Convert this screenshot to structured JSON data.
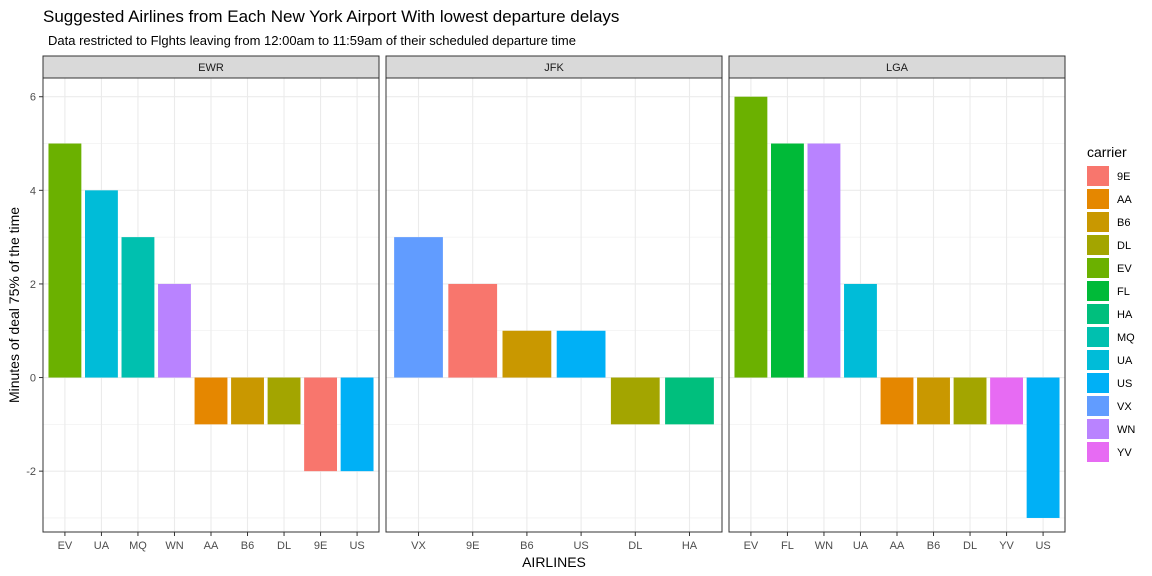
{
  "chart_data": {
    "type": "bar",
    "title": "Suggested Airlines from Each New York Airport With lowest departure delays",
    "subtitle": "Data restricted to Flghts leaving from 12:00am to 11:59am of their scheduled departure time",
    "xlabel": "AIRLINES",
    "ylabel": "Minutes of deal 75% of the time",
    "ylim": [
      -3.3,
      6.4
    ],
    "yticks": [
      -2,
      0,
      2,
      4,
      6
    ],
    "grid": true,
    "legend": {
      "title": "carrier",
      "position": "right",
      "entries": [
        {
          "label": "9E",
          "color": "#F8766D"
        },
        {
          "label": "AA",
          "color": "#E58700"
        },
        {
          "label": "B6",
          "color": "#C99800"
        },
        {
          "label": "DL",
          "color": "#A3A500"
        },
        {
          "label": "EV",
          "color": "#6BB100"
        },
        {
          "label": "FL",
          "color": "#00BA38"
        },
        {
          "label": "HA",
          "color": "#00BF7D"
        },
        {
          "label": "MQ",
          "color": "#00C0AF"
        },
        {
          "label": "UA",
          "color": "#00BCD8"
        },
        {
          "label": "US",
          "color": "#00B0F6"
        },
        {
          "label": "VX",
          "color": "#619CFF"
        },
        {
          "label": "WN",
          "color": "#B983FF"
        },
        {
          "label": "YV",
          "color": "#E76BF3"
        }
      ]
    },
    "facets": [
      {
        "name": "EWR",
        "categories": [
          "EV",
          "UA",
          "MQ",
          "WN",
          "AA",
          "B6",
          "DL",
          "9E",
          "US"
        ],
        "values": [
          5,
          4,
          3,
          2,
          -1,
          -1,
          -1,
          -2,
          -2
        ]
      },
      {
        "name": "JFK",
        "categories": [
          "VX",
          "9E",
          "B6",
          "US",
          "DL",
          "HA"
        ],
        "values": [
          3,
          2,
          1,
          1,
          -1,
          -1
        ]
      },
      {
        "name": "LGA",
        "categories": [
          "EV",
          "FL",
          "WN",
          "UA",
          "AA",
          "B6",
          "DL",
          "YV",
          "US"
        ],
        "values": [
          6,
          5,
          5,
          2,
          -1,
          -1,
          -1,
          -1,
          -3
        ]
      }
    ]
  }
}
